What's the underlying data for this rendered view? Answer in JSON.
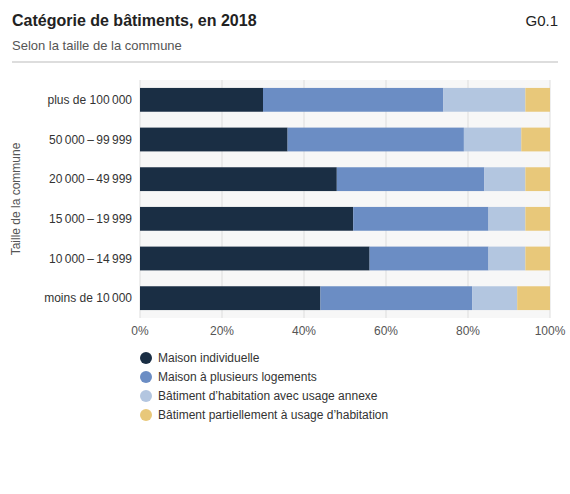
{
  "chart_data": {
    "type": "bar",
    "orientation": "horizontal",
    "stacked": true,
    "title": "Catégorie de bâtiments, en 2018",
    "subtitle": "Selon la taille de la commune",
    "annotations": [
      "G0.1"
    ],
    "ylabel": "Taille de la commune",
    "categories": [
      "plus de 100 000",
      "50 000 – 99 999",
      "20 000 – 49 999",
      "15 000 – 19 999",
      "10 000 – 14 999",
      "moins de 10 000"
    ],
    "series": [
      {
        "name": "Maison individuelle",
        "color": "#1a2e44",
        "values": [
          30,
          36,
          48,
          52,
          56,
          44
        ]
      },
      {
        "name": "Maison à plusieurs logements",
        "color": "#6b8dc4",
        "values": [
          44,
          43,
          36,
          33,
          29,
          37
        ]
      },
      {
        "name": "Bâtiment d’habitation avec usage annexe",
        "color": "#b3c6e0",
        "values": [
          20,
          14,
          10,
          9,
          9,
          11
        ]
      },
      {
        "name": "Bâtiment partiellement à usage d’habitation",
        "color": "#e8c87a",
        "values": [
          6,
          7,
          6,
          6,
          6,
          8
        ]
      }
    ],
    "xlim": [
      0,
      100
    ],
    "xticks": [
      {
        "value": 0,
        "label": "0%"
      },
      {
        "value": 20,
        "label": "20%"
      },
      {
        "value": 40,
        "label": "40%"
      },
      {
        "value": 60,
        "label": "60%"
      },
      {
        "value": 80,
        "label": "80%"
      },
      {
        "value": 100,
        "label": "100%"
      }
    ],
    "grid": true,
    "legend": "bottom"
  }
}
